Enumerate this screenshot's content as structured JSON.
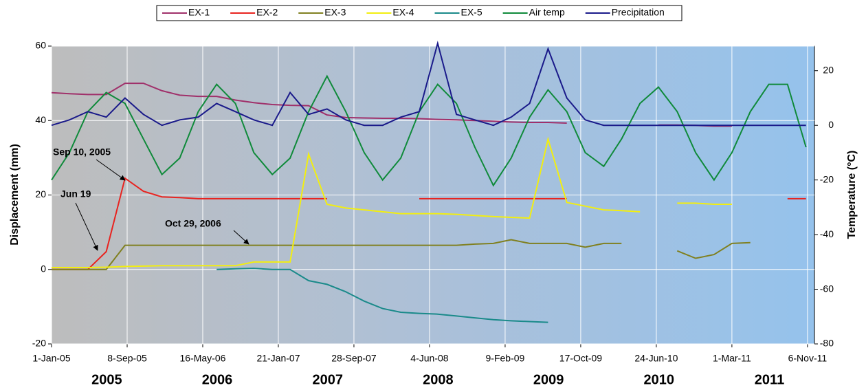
{
  "chart_data": {
    "type": "line",
    "ylabel": "Displacement (mm)",
    "y2label": "Temperature (°C)",
    "xlim": [
      "2005-01-01",
      "2011-11-29"
    ],
    "xticks": [
      {
        "value": "2005-01-01",
        "label": "1-Jan-05"
      },
      {
        "value": "2005-09-08",
        "label": "8-Sep-05"
      },
      {
        "value": "2006-05-16",
        "label": "16-May-06"
      },
      {
        "value": "2007-01-21",
        "label": "21-Jan-07"
      },
      {
        "value": "2007-09-28",
        "label": "28-Sep-07"
      },
      {
        "value": "2008-06-04",
        "label": "4-Jun-08"
      },
      {
        "value": "2009-02-09",
        "label": "9-Feb-09"
      },
      {
        "value": "2009-10-17",
        "label": "17-Oct-09"
      },
      {
        "value": "2010-06-24",
        "label": "24-Jun-10"
      },
      {
        "value": "2011-03-01",
        "label": "1-Mar-11"
      },
      {
        "value": "2011-11-06",
        "label": "6-Nov-11"
      }
    ],
    "ylim": [
      -20,
      60
    ],
    "yticks": [
      -20,
      0,
      20,
      40,
      60
    ],
    "y2lim": [
      -80,
      29
    ],
    "y2ticks": [
      -80,
      -60,
      -40,
      -20,
      0,
      20
    ],
    "grid": true,
    "year_labels": [
      "2005",
      "2006",
      "2007",
      "2008",
      "2009",
      "2010",
      "2011"
    ],
    "annotations": [
      "Sep 10, 2005",
      "Jun 19",
      "Oct 29, 2006"
    ],
    "legend": "top",
    "x": [
      "2005-01-01",
      "2005-03-01",
      "2005-05-01",
      "2005-07-01",
      "2005-09-01",
      "2005-11-01",
      "2006-01-01",
      "2006-03-01",
      "2006-05-01",
      "2006-07-01",
      "2006-09-01",
      "2006-11-01",
      "2007-01-01",
      "2007-03-01",
      "2007-05-01",
      "2007-07-01",
      "2007-09-01",
      "2007-11-01",
      "2008-01-01",
      "2008-03-01",
      "2008-05-01",
      "2008-07-01",
      "2008-09-01",
      "2008-11-01",
      "2009-01-01",
      "2009-03-01",
      "2009-05-01",
      "2009-07-01",
      "2009-09-01",
      "2009-11-01",
      "2010-01-01",
      "2010-03-01",
      "2010-05-01",
      "2010-07-01",
      "2010-09-01",
      "2010-11-01",
      "2011-01-01",
      "2011-03-01",
      "2011-05-01",
      "2011-07-01",
      "2011-09-01",
      "2011-11-01"
    ],
    "series": [
      {
        "name": "EX-1",
        "color": "#a0306a",
        "values": [
          47.5,
          47.2,
          47,
          47,
          50,
          50,
          48,
          46.8,
          46.5,
          46.5,
          45.5,
          44.8,
          44.3,
          44.1,
          44,
          41.5,
          40.8,
          40.7,
          40.6,
          40.6,
          40.5,
          40.3,
          40.2,
          40,
          39.8,
          39.6,
          39.5,
          39.5,
          39.3,
          null,
          null,
          null,
          null,
          38.8,
          38.8,
          38.7,
          38.5,
          38.5,
          null,
          null,
          null,
          33.5
        ]
      },
      {
        "name": "EX-2",
        "color": "#e8231f",
        "values": [
          0,
          0,
          0,
          4.8,
          24.5,
          21,
          19.5,
          19.3,
          19,
          19,
          19,
          19,
          19,
          19,
          19,
          19,
          null,
          null,
          null,
          null,
          19,
          19,
          19,
          19,
          19,
          19,
          19,
          19,
          19,
          null,
          null,
          null,
          null,
          null,
          null,
          null,
          null,
          null,
          null,
          null,
          19,
          19
        ]
      },
      {
        "name": "EX-3",
        "color": "#808020",
        "values": [
          0,
          0,
          0,
          0,
          6.5,
          6.5,
          6.5,
          6.5,
          6.5,
          6.5,
          6.5,
          6.5,
          6.5,
          6.5,
          6.5,
          6.5,
          6.5,
          6.5,
          6.5,
          6.5,
          6.5,
          6.5,
          6.5,
          6.8,
          7,
          8,
          7,
          7,
          7,
          6,
          7,
          7,
          null,
          null,
          5,
          3,
          4,
          7,
          7.2,
          null,
          null,
          7
        ]
      },
      {
        "name": "EX-4",
        "color": "#f2ee10",
        "values": [
          0.5,
          0.5,
          0.5,
          0.6,
          0.8,
          0.9,
          1,
          1,
          1,
          1,
          1,
          2,
          2,
          2,
          31,
          17.5,
          16.5,
          16,
          15.5,
          15,
          15,
          15,
          14.8,
          14.5,
          14.2,
          14,
          13.8,
          35,
          18,
          17,
          16,
          15.8,
          15.5,
          null,
          17.8,
          17.8,
          17.5,
          17.5,
          null,
          null,
          null,
          null
        ]
      },
      {
        "name": "EX-5",
        "color": "#1a8a8a",
        "values": [
          null,
          null,
          null,
          null,
          null,
          null,
          null,
          null,
          null,
          0,
          0.2,
          0.3,
          0,
          0,
          -3,
          -4,
          -6,
          -8.5,
          -10.5,
          -11.5,
          -11.8,
          -12,
          -12.5,
          -13,
          -13.5,
          -13.8,
          -14,
          -14.2,
          null,
          -15.5,
          null,
          null,
          null,
          null,
          null,
          null,
          null,
          null,
          null,
          null,
          null,
          null
        ]
      },
      {
        "name": "Air temp",
        "color": "#0f8a3a",
        "axis": "y2",
        "values": [
          -20,
          -10,
          5,
          12,
          8,
          -5,
          -18,
          -12,
          5,
          15,
          8,
          -10,
          -18,
          -12,
          5,
          18,
          5,
          -10,
          -20,
          -12,
          5,
          15,
          8,
          -8,
          -22,
          -12,
          3,
          13,
          5,
          -10,
          -15,
          -5,
          8,
          14,
          5,
          -10,
          -20,
          -10,
          5,
          15,
          15,
          -8
        ]
      },
      {
        "name": "Precipitation",
        "color": "#1a1a8a",
        "axis": "y2",
        "values": [
          0,
          2,
          5,
          3,
          10,
          4,
          0,
          2,
          3,
          8,
          5,
          2,
          0,
          12,
          4,
          6,
          2,
          0,
          0,
          3,
          5,
          30,
          4,
          2,
          0,
          3,
          8,
          28,
          10,
          2,
          0,
          0,
          0,
          0,
          0,
          0,
          0,
          0,
          0,
          0,
          0,
          0
        ]
      }
    ]
  }
}
